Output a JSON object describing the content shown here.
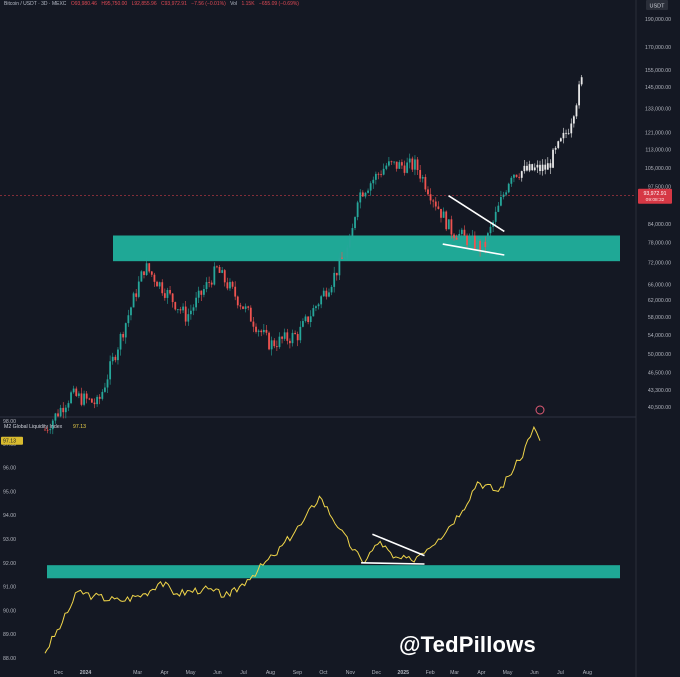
{
  "header": {
    "symbol": "Bitcoin / USDT · 3D · MEXC",
    "open": "O93,980.46",
    "high": "H95,750.00",
    "low": "L92,855.96",
    "close": "C93,972.91",
    "change": "−7.56 (−0.01%)",
    "volume_label": "Vol",
    "volume": "1.15K",
    "volume_change": "−655.09 (−0.69%)",
    "currency_button": "USDT"
  },
  "price_badge": {
    "price": "93,972.91",
    "countdown": "09:08:32"
  },
  "lower_header": {
    "indicator_name": "M2 Global Liquidity Index",
    "indicator_value": "97.13"
  },
  "watermark": "@TedPillows",
  "colors": {
    "background": "#141823",
    "zone": "#1fa896",
    "m2_line": "#f0d54a",
    "up_candle": "#26a69a",
    "down_candle": "#ef5350",
    "trendline": "#ffffff"
  },
  "chart_data": [
    {
      "type": "candlestick",
      "title": "Bitcoin / USDT · 3D · MEXC",
      "y_scale": "log",
      "y_ticks": [
        40500,
        43300,
        46500,
        50000,
        54000,
        58000,
        62000,
        66000,
        72000,
        78000,
        84000,
        97500,
        105000,
        113000,
        121000,
        133000,
        145000,
        155000,
        170000,
        190000
      ],
      "y_tick_labels": [
        "40,500.00",
        "43,300.00",
        "46,500.00",
        "50,000.00",
        "54,000.00",
        "58,000.00",
        "62,000.00",
        "66,000.00",
        "72,000.00",
        "78,000.00",
        "84,000.00",
        "97,500.00",
        "105,000.00",
        "113,000.00",
        "121,000.00",
        "133,000.00",
        "145,000.00",
        "155,000.00",
        "170,000.00",
        "190,000.00"
      ],
      "zone": {
        "low": 72400,
        "high": 80200
      },
      "last_price": 93972.91,
      "key_points": [
        {
          "date": "2023-11-20",
          "price": 37000
        },
        {
          "date": "2023-12-20",
          "price": 42500
        },
        {
          "date": "2024-01-20",
          "price": 41000
        },
        {
          "date": "2024-03-14",
          "price": 71000
        },
        {
          "date": "2024-05-01",
          "price": 58000
        },
        {
          "date": "2024-06-05",
          "price": 70000
        },
        {
          "date": "2024-08-05",
          "price": 52000
        },
        {
          "date": "2024-09-06",
          "price": 54000
        },
        {
          "date": "2024-10-15",
          "price": 67000
        },
        {
          "date": "2024-11-06",
          "price": 78000
        },
        {
          "date": "2024-11-14",
          "price": 94000
        },
        {
          "date": "2024-12-17",
          "price": 106000
        },
        {
          "date": "2025-01-20",
          "price": 106000
        },
        {
          "date": "2025-03-01",
          "price": 82000
        },
        {
          "date": "2025-04-08",
          "price": 76000
        },
        {
          "date": "2025-05-10",
          "price": 103000
        },
        {
          "date": "2025-06-20",
          "price": 105000
        },
        {
          "date": "2025-07-14",
          "price": 122000
        },
        {
          "date": "2025-08-01",
          "price": 152000
        }
      ]
    },
    {
      "type": "line",
      "title": "M2 Global Liquidity Index",
      "last_value": 97.13,
      "y_ticks": [
        88.0,
        89.0,
        90.0,
        91.0,
        92.0,
        93.0,
        94.0,
        95.0,
        96.0,
        97.0,
        98.0
      ],
      "y_tick_labels": [
        "88.00",
        "89.00",
        "90.00",
        "91.00",
        "92.00",
        "93.00",
        "94.00",
        "95.00",
        "96.00",
        "97.00",
        "98.00"
      ],
      "zone": {
        "low": 91.35,
        "high": 91.9
      },
      "series": [
        {
          "points": [
            {
              "date": "2023-11-20",
              "value": 88.2
            },
            {
              "date": "2023-12-10",
              "value": 89.5
            },
            {
              "date": "2023-12-28",
              "value": 90.8
            },
            {
              "date": "2024-01-15",
              "value": 90.6
            },
            {
              "date": "2024-02-15",
              "value": 90.4
            },
            {
              "date": "2024-03-15",
              "value": 90.7
            },
            {
              "date": "2024-04-01",
              "value": 91.2
            },
            {
              "date": "2024-04-20",
              "value": 90.7
            },
            {
              "date": "2024-05-20",
              "value": 90.9
            },
            {
              "date": "2024-06-20",
              "value": 90.6
            },
            {
              "date": "2024-07-10",
              "value": 91.3
            },
            {
              "date": "2024-08-10",
              "value": 92.3
            },
            {
              "date": "2024-09-10",
              "value": 93.6
            },
            {
              "date": "2024-10-01",
              "value": 94.8
            },
            {
              "date": "2024-10-25",
              "value": 93.4
            },
            {
              "date": "2024-11-20",
              "value": 92.0
            },
            {
              "date": "2024-12-10",
              "value": 92.9
            },
            {
              "date": "2024-12-25",
              "value": 92.2
            },
            {
              "date": "2025-01-15",
              "value": 92.1
            },
            {
              "date": "2025-02-15",
              "value": 93.0
            },
            {
              "date": "2025-03-15",
              "value": 94.2
            },
            {
              "date": "2025-04-01",
              "value": 95.4
            },
            {
              "date": "2025-04-25",
              "value": 95.0
            },
            {
              "date": "2025-05-20",
              "value": 96.3
            },
            {
              "date": "2025-06-05",
              "value": 97.7
            },
            {
              "date": "2025-06-12",
              "value": 97.13
            }
          ]
        }
      ]
    }
  ],
  "x_axis_labels": [
    "Dec",
    "2024",
    "Mar",
    "Apr",
    "May",
    "Jun",
    "Jul",
    "Aug",
    "Sep",
    "Oct",
    "Nov",
    "Dec",
    "2025",
    "Feb",
    "Mar",
    "Apr",
    "May",
    "Jun",
    "Jul",
    "Aug"
  ]
}
